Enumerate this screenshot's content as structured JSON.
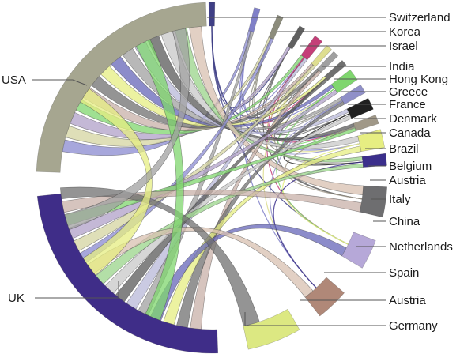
{
  "nodes": [
    {
      "label": "Switzerland",
      "color": "#3f3f86"
    },
    {
      "label": "Korea",
      "color": "#8080c8"
    },
    {
      "label": "Israel",
      "color": "#8c8c7c"
    },
    {
      "label": "India",
      "color": "#606060"
    },
    {
      "label": "Hong Kong",
      "color": "#c43f78"
    },
    {
      "label": "Greece",
      "color": "#dede90"
    },
    {
      "label": "France",
      "color": "#a0a0a0"
    },
    {
      "label": "Denmark",
      "color": "#707070"
    },
    {
      "label": "Canada",
      "color": "#7fd66e"
    },
    {
      "label": "Brazil",
      "color": "#9090c8"
    },
    {
      "label": "Belgium",
      "color": "#202020"
    },
    {
      "label": "Austria",
      "color": "#a09888"
    },
    {
      "label": "Italy",
      "color": "#e6ee82"
    },
    {
      "label": "China",
      "color": "#3b2f8c"
    },
    {
      "label": "Netherlands",
      "color": "#6e6e70"
    },
    {
      "label": "Spain",
      "color": "#b6a8d8"
    },
    {
      "label": "Austria",
      "color": "#b08878"
    },
    {
      "label": "Germany",
      "color": "#dce882"
    },
    {
      "label": "UK",
      "color": "#3f2d88"
    },
    {
      "label": "USA",
      "color": "#a6a690"
    }
  ]
}
